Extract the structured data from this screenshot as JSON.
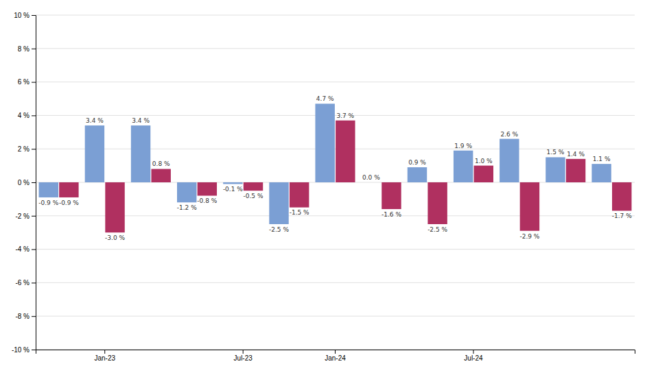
{
  "chart_data": {
    "type": "bar",
    "categories": [
      null,
      "Jan-23",
      null,
      null,
      "Jul-23",
      null,
      "Jan-24",
      null,
      null,
      "Jul-24",
      null,
      null,
      null
    ],
    "series": [
      {
        "color": "#7b9fd4",
        "values": [
          -0.9,
          3.4,
          3.4,
          -1.2,
          -0.1,
          -2.5,
          4.7,
          0.0,
          0.9,
          1.9,
          2.6,
          1.5,
          1.1
        ],
        "value_labels": [
          "-0.9 %",
          "3.4 %",
          "3.4 %",
          "-1.2 %",
          "-0.1 %",
          "-2.5 %",
          "4.7 %",
          "0.0 %",
          "0.9 %",
          "1.9 %",
          "2.6 %",
          "1.5 %",
          "1.1 %"
        ]
      },
      {
        "color": "#b03060",
        "values": [
          -0.9,
          -3.0,
          0.8,
          -0.8,
          -0.5,
          -1.5,
          3.7,
          -1.6,
          -2.5,
          1.0,
          -2.9,
          1.4,
          -1.7
        ],
        "value_labels": [
          "-0.9 %",
          "-3.0 %",
          "0.8 %",
          "-0.8 %",
          "-0.5 %",
          "-1.5 %",
          "3.7 %",
          "-1.6 %",
          "-2.5 %",
          "1.0 %",
          "-2.9 %",
          "1.4 %",
          "-1.7 %"
        ]
      }
    ],
    "ylim": [
      -10,
      10
    ],
    "yticks": [
      {
        "value": -10,
        "label": "-10 %"
      },
      {
        "value": -8,
        "label": "-8 %"
      },
      {
        "value": -6,
        "label": "-6 %"
      },
      {
        "value": -4,
        "label": "-4 %"
      },
      {
        "value": -2,
        "label": "-2 %"
      },
      {
        "value": 0,
        "label": "0 %"
      },
      {
        "value": 2,
        "label": "2 %"
      },
      {
        "value": 4,
        "label": "4 %"
      },
      {
        "value": 6,
        "label": "6 %"
      },
      {
        "value": 8,
        "label": "8 %"
      },
      {
        "value": 10,
        "label": "10 %"
      }
    ],
    "grid": true,
    "data_labels": true
  }
}
